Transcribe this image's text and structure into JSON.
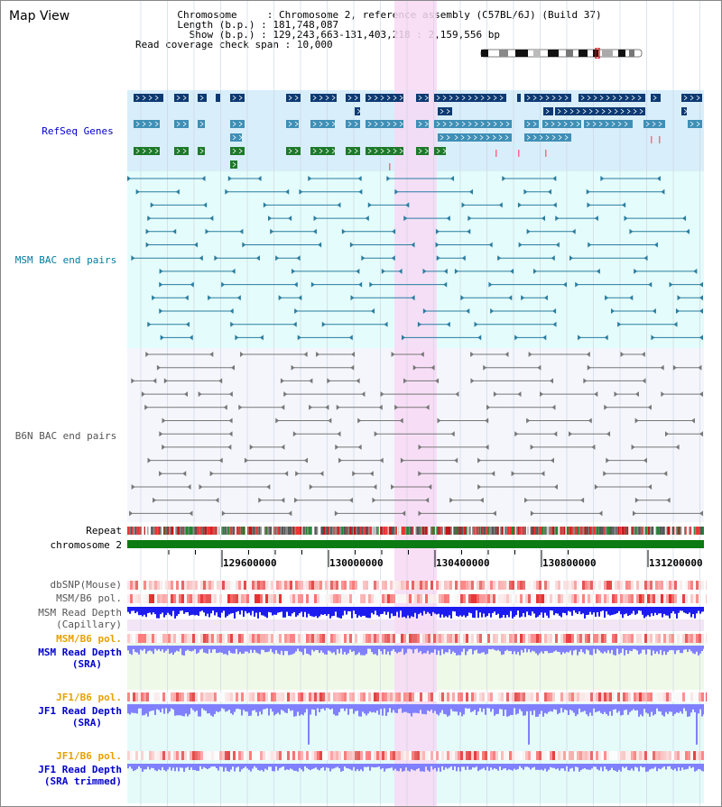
{
  "window_title": "Map View",
  "info": {
    "chromosome_label": "Chromosome",
    "chromosome_value": "Chromosome 2, reference assembly (C57BL/6J) (Build 37)",
    "length_label": "Length (b.p.)",
    "length_value": "181,748,087",
    "show_label": "Show (b.p.)",
    "show_value": "129,243,663-131,403,218 : 2,159,556 bp",
    "span_label": "Read coverage check span",
    "span_value": "10,000"
  },
  "tracks": {
    "refseq_genes": "RefSeq Genes",
    "msm_bac": "MSM BAC end pairs",
    "b6n_bac": "B6N BAC end pairs",
    "repeat": "Repeat",
    "chromosome": "chromosome 2",
    "dbsnp": "dbSNP(Mouse)",
    "msm_b6_pol": "MSM/B6 pol.",
    "msm_depth_cap_1": "MSM Read Depth",
    "msm_depth_cap_2": "(Capillary)",
    "msm_b6_pol_sra": "MSM/B6 pol.",
    "msm_depth_sra_1": "MSM Read Depth",
    "msm_depth_sra_2": "(SRA)",
    "jf1_b6_pol_1": "JF1/B6 pol.",
    "jf1_depth_1": "JF1 Read Depth",
    "jf1_depth_1b": "(SRA)",
    "jf1_b6_pol_2": "JF1/B6 pol.",
    "jf1_depth_2": "JF1 Read Depth",
    "jf1_depth_2b": "(SRA trimmed)"
  },
  "axis_ticks": [
    "129600000",
    "130000000",
    "130400000",
    "130800000",
    "131200000"
  ],
  "colors": {
    "refseq_bg": "#d8eefa",
    "msm_bg": "#e4fcfb",
    "b6n_bg": "#f4f6fc",
    "highlight": "#f7d9f5",
    "gene_dark": "#0d3a73",
    "gene_mid": "#3f8fb6",
    "gene_green": "#1d7a2a",
    "msm_line": "#2a7da0",
    "b6n_line": "#777777",
    "chrom_green": "#0c7b14",
    "depth_blue": "#1c1cf0",
    "sra_blue": "#8080ff",
    "label_blue": "#0000cc",
    "label_teal": "#007d9e",
    "label_orange": "#e8a000"
  }
}
